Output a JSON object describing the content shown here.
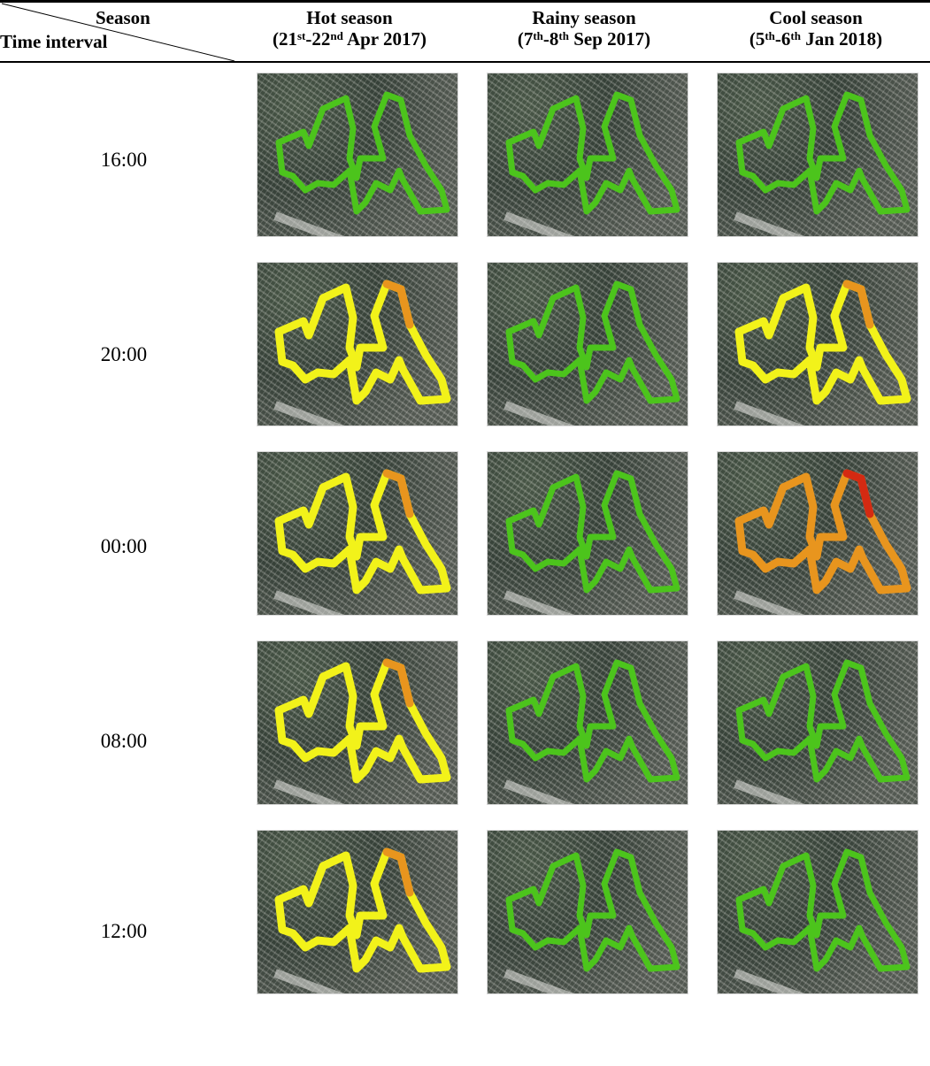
{
  "header": {
    "season_label": "Season",
    "time_label": "Time interval",
    "columns": [
      {
        "title": "Hot season",
        "d1": "21",
        "s1": "st",
        "d2": "-22",
        "s2": "nd",
        "rest": " Apr 2017)"
      },
      {
        "title": "Rainy season",
        "d1": "7",
        "s1": "th",
        "d2": "-8",
        "s2": "th",
        "rest": " Sep 2017)"
      },
      {
        "title": "Cool season",
        "d1": "5",
        "s1": "th",
        "d2": "-6",
        "s2": "th",
        "rest": " Jan 2018)"
      }
    ]
  },
  "rows": [
    {
      "time": "16:00"
    },
    {
      "time": "20:00"
    },
    {
      "time": "00:00"
    },
    {
      "time": "08:00"
    },
    {
      "time": "12:00"
    }
  ],
  "colors": {
    "green": "#4cc41c",
    "yellow": "#f2f21a",
    "orange": "#e8951e",
    "red": "#d42a12"
  },
  "maps": [
    [
      "green",
      "green",
      "green"
    ],
    [
      "yellow",
      "green",
      "yellow"
    ],
    [
      "yellow",
      "green",
      "orange"
    ],
    [
      "yellow",
      "green",
      "green"
    ],
    [
      "yellow",
      "green",
      "green"
    ]
  ]
}
